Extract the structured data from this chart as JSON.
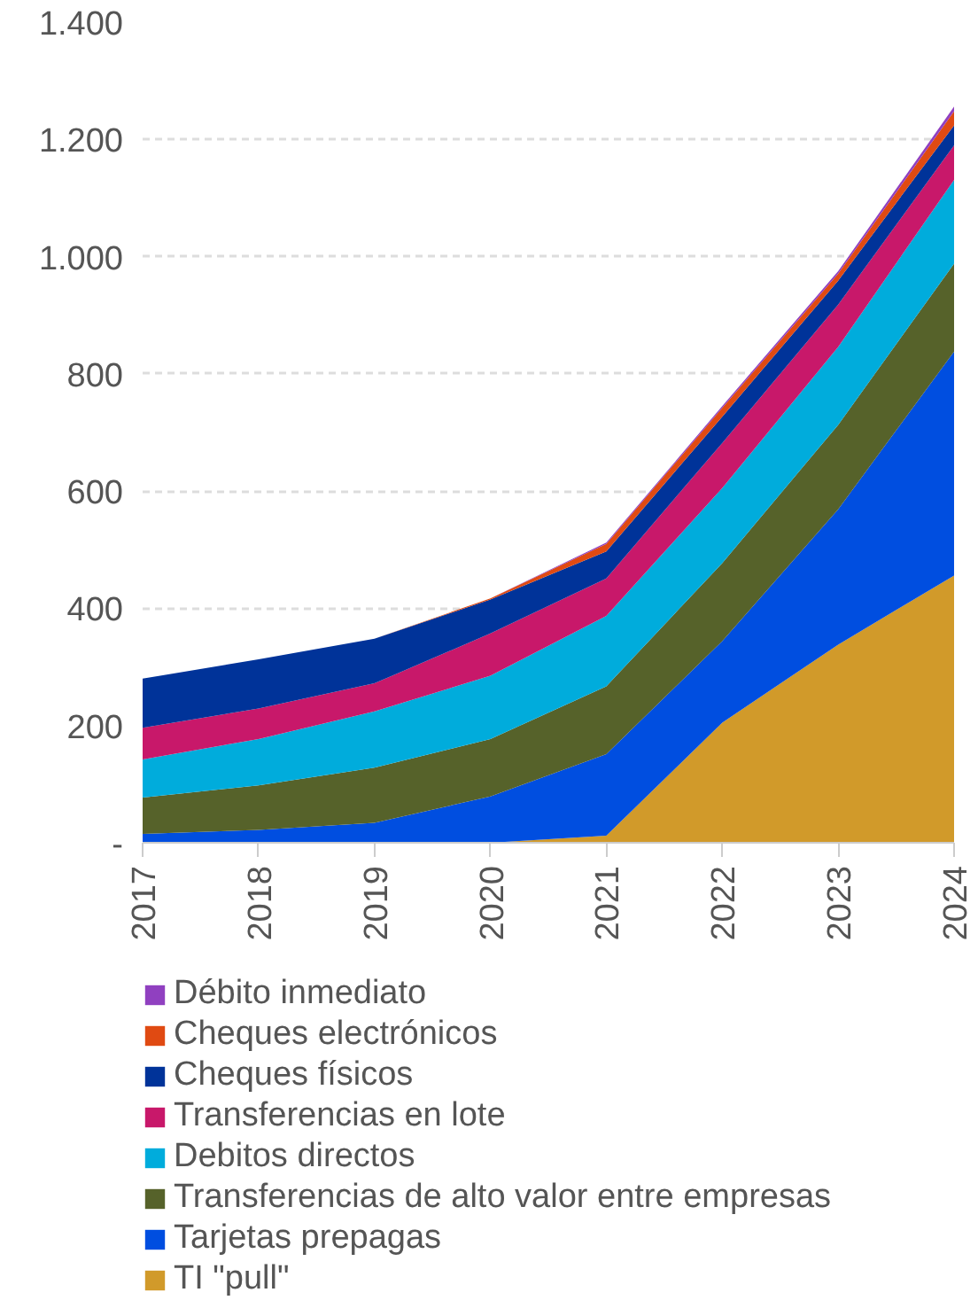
{
  "chart_data": {
    "type": "area",
    "stacked": true,
    "categories": [
      "2017",
      "2018",
      "2019",
      "2020",
      "2021",
      "2022",
      "2023",
      "2024"
    ],
    "ylim": [
      0,
      1400
    ],
    "yticks": [
      {
        "value": 0,
        "label": "-"
      },
      200,
      400,
      600,
      800,
      {
        "value": 1000,
        "label": "1.000"
      },
      {
        "value": 1200,
        "label": "1.200"
      },
      {
        "value": 1400,
        "label": "1.400"
      }
    ],
    "grid": "y",
    "legend": "bottom",
    "series": [
      {
        "name": "TI \"pull\"",
        "color": "#d19a2a",
        "values": [
          0,
          0,
          0,
          0,
          12,
          205,
          338,
          456
        ]
      },
      {
        "name": "Tarjetas prepagas",
        "color": "#004ee0",
        "values": [
          15,
          22,
          34,
          79,
          139,
          139,
          231,
          382
        ]
      },
      {
        "name": "Transferencias de alto valor entre empresas",
        "color": "#56622a",
        "values": [
          62,
          76,
          94,
          98,
          116,
          133,
          144,
          150
        ]
      },
      {
        "name": "Debitos directos",
        "color": "#00acdc",
        "values": [
          65,
          79,
          96,
          108,
          120,
          128,
          133,
          143
        ]
      },
      {
        "name": "Transferencias en lote",
        "color": "#c8186a",
        "values": [
          54,
          52,
          48,
          72,
          64,
          77,
          72,
          59
        ]
      },
      {
        "name": "Cheques físicos",
        "color": "#003399",
        "values": [
          84,
          84,
          76,
          58,
          46,
          45,
          41,
          34
        ]
      },
      {
        "name": "Cheques electrónicos",
        "color": "#e04a12",
        "values": [
          0,
          0,
          0,
          2,
          13,
          15,
          12,
          24
        ]
      },
      {
        "name": "Débito inmediato",
        "color": "#9040c0",
        "values": [
          0,
          0,
          0,
          0,
          2,
          3,
          4,
          8
        ]
      }
    ]
  }
}
